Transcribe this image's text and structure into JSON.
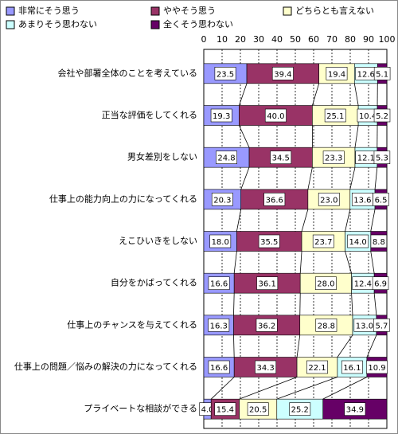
{
  "chart_data": {
    "type": "stacked-bar-horizontal",
    "categories": [
      "会社や部署全体のことを考えている",
      "正当な評価をしてくれる",
      "男女差別をしない",
      "仕事上の能力向上の力になってくれる",
      "えこひいきをしない",
      "自分をかばってくれる",
      "仕事上のチャンスを与えてくれる",
      "仕事上の問題／悩みの解決の力になってくれる",
      "プライベートな相談ができる"
    ],
    "series": [
      {
        "name": "非常にそう思う",
        "color": "#9999ff",
        "values": [
          23.5,
          19.3,
          24.8,
          20.3,
          18.0,
          16.6,
          16.3,
          16.6,
          4.0
        ],
        "value_labels": [
          "23.5",
          "19.3",
          "24.8",
          "20.3",
          "18.0",
          "16.6",
          "16.3",
          "16.6",
          "4.0"
        ]
      },
      {
        "name": "ややそう思う",
        "color": "#993366",
        "values": [
          39.4,
          40.0,
          34.5,
          36.6,
          35.5,
          36.1,
          36.2,
          34.3,
          15.4
        ],
        "value_labels": [
          "39.4",
          "40.0",
          "34.5",
          "36.6",
          "35.5",
          "36.1",
          "36.2",
          "34.3",
          "15.4"
        ]
      },
      {
        "name": "どちらとも言えない",
        "color": "#ffffcc",
        "values": [
          19.4,
          25.1,
          23.3,
          23.0,
          23.7,
          28.0,
          28.8,
          22.1,
          20.5
        ],
        "value_labels": [
          "19.4",
          "25.1",
          "23.3",
          "23.0",
          "23.7",
          "28.0",
          "28.8",
          "22.1",
          "20.5"
        ]
      },
      {
        "name": "あまりそう思わない",
        "color": "#ccffff",
        "values": [
          12.6,
          10.4,
          12.1,
          13.6,
          14.0,
          12.4,
          13.0,
          16.1,
          25.2
        ],
        "value_labels": [
          "12.6",
          "10.4",
          "12.1",
          "13.6",
          "14.0",
          "12.4",
          "13.0",
          "16.1",
          "25.2"
        ]
      },
      {
        "name": "全くそう思わない",
        "color": "#660066",
        "values": [
          5.1,
          5.2,
          5.3,
          6.5,
          8.8,
          6.9,
          5.7,
          10.9,
          34.9
        ],
        "value_labels": [
          "5.1",
          "5.2",
          "5.3",
          "6.5",
          "8.8",
          "6.9",
          "5.7",
          "10.9",
          "34.9"
        ]
      }
    ],
    "xlim": [
      0,
      100
    ],
    "xticks": [
      0,
      10,
      20,
      30,
      40,
      50,
      60,
      70,
      80,
      90,
      100
    ],
    "grid": true
  }
}
